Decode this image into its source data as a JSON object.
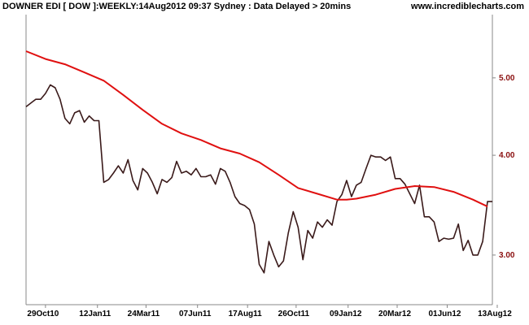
{
  "header": {
    "title": "DOWNER EDI [ DOW ]:WEEKLY:14Aug2012 09:37 Sydney : Data Delayed > 20mins",
    "site": "www.incrediblecharts.com"
  },
  "colors": {
    "price": "#3a1a1a",
    "moving_average": "#e01010",
    "axis": "#888888",
    "ytick": "#8b1010"
  },
  "chart_data": {
    "type": "line",
    "title": "DOWNER EDI [ DOW ]:WEEKLY:14Aug2012 09:37 Sydney : Data Delayed > 20mins",
    "xlabel": "",
    "ylabel": "",
    "yscale": "log",
    "ylim": [
      2.6,
      6.0
    ],
    "xlim": [
      0,
      96
    ],
    "grid": false,
    "x_ticks": [
      {
        "label": "29Oct10",
        "x": 4
      },
      {
        "label": "12Jan11",
        "x": 14.7
      },
      {
        "label": "24Mar11",
        "x": 24.7
      },
      {
        "label": "07Jun11",
        "x": 35.3
      },
      {
        "label": "17Aug11",
        "x": 45.6
      },
      {
        "label": "26Oct11",
        "x": 55.6
      },
      {
        "label": "09Jan12",
        "x": 66.3
      },
      {
        "label": "20Mar12",
        "x": 76.4
      },
      {
        "label": "01Jun12",
        "x": 86.7
      },
      {
        "label": "13Aug12",
        "x": 97
      }
    ],
    "y_ticks": [
      {
        "label": "5.00",
        "value": 5.0
      },
      {
        "label": "4.00",
        "value": 4.0
      },
      {
        "label": "3.00",
        "value": 3.0
      }
    ],
    "series": [
      {
        "key": "price",
        "x": [
          0,
          1,
          2,
          3,
          4,
          5,
          6,
          7,
          8,
          9,
          10,
          11,
          12,
          13,
          14,
          15,
          16,
          17,
          18,
          19,
          20,
          21,
          22,
          23,
          24,
          25,
          26,
          27,
          28,
          29,
          30,
          31,
          32,
          33,
          34,
          35,
          36,
          37,
          38,
          39,
          40,
          41,
          42,
          43,
          44,
          45,
          46,
          47,
          48,
          49,
          50,
          51,
          52,
          53,
          54,
          55,
          56,
          57,
          58,
          59,
          60,
          61,
          62,
          63,
          64,
          65,
          66,
          67,
          68,
          69,
          70,
          71,
          72,
          73,
          74,
          75,
          76,
          77,
          78,
          79,
          80,
          81,
          82,
          83,
          84,
          85,
          86,
          87,
          88,
          89,
          90,
          91,
          92,
          93,
          94,
          95,
          96
        ],
        "values": [
          4.6,
          4.65,
          4.7,
          4.7,
          4.78,
          4.9,
          4.86,
          4.7,
          4.45,
          4.38,
          4.52,
          4.55,
          4.4,
          4.48,
          4.42,
          4.42,
          3.7,
          3.73,
          3.8,
          3.88,
          3.8,
          3.95,
          3.72,
          3.62,
          3.85,
          3.8,
          3.7,
          3.58,
          3.73,
          3.7,
          3.75,
          3.93,
          3.8,
          3.82,
          3.78,
          3.85,
          3.76,
          3.76,
          3.78,
          3.68,
          3.85,
          3.82,
          3.7,
          3.55,
          3.48,
          3.46,
          3.42,
          3.28,
          2.92,
          2.85,
          3.12,
          3.0,
          2.9,
          2.95,
          3.2,
          3.4,
          3.25,
          2.96,
          3.22,
          3.15,
          3.3,
          3.25,
          3.32,
          3.27,
          3.5,
          3.57,
          3.72,
          3.55,
          3.67,
          3.7,
          3.85,
          4.0,
          3.98,
          3.98,
          3.94,
          3.98,
          3.74,
          3.74,
          3.68,
          3.58,
          3.48,
          3.67,
          3.35,
          3.35,
          3.3,
          3.12,
          3.15,
          3.14,
          3.15,
          3.28,
          3.04,
          3.13,
          3.0,
          3.0,
          3.12,
          3.5,
          3.5
        ]
      },
      {
        "key": "moving_average",
        "x": [
          0,
          4,
          8,
          12,
          16,
          20,
          24,
          28,
          32,
          36,
          40,
          44,
          48,
          52,
          56,
          60,
          64,
          66,
          68,
          72,
          76,
          80,
          84,
          88,
          92,
          95
        ],
        "values": [
          5.4,
          5.28,
          5.2,
          5.08,
          4.96,
          4.76,
          4.56,
          4.38,
          4.26,
          4.18,
          4.08,
          4.02,
          3.92,
          3.78,
          3.64,
          3.58,
          3.52,
          3.52,
          3.53,
          3.57,
          3.63,
          3.66,
          3.65,
          3.6,
          3.52,
          3.45
        ]
      }
    ]
  }
}
